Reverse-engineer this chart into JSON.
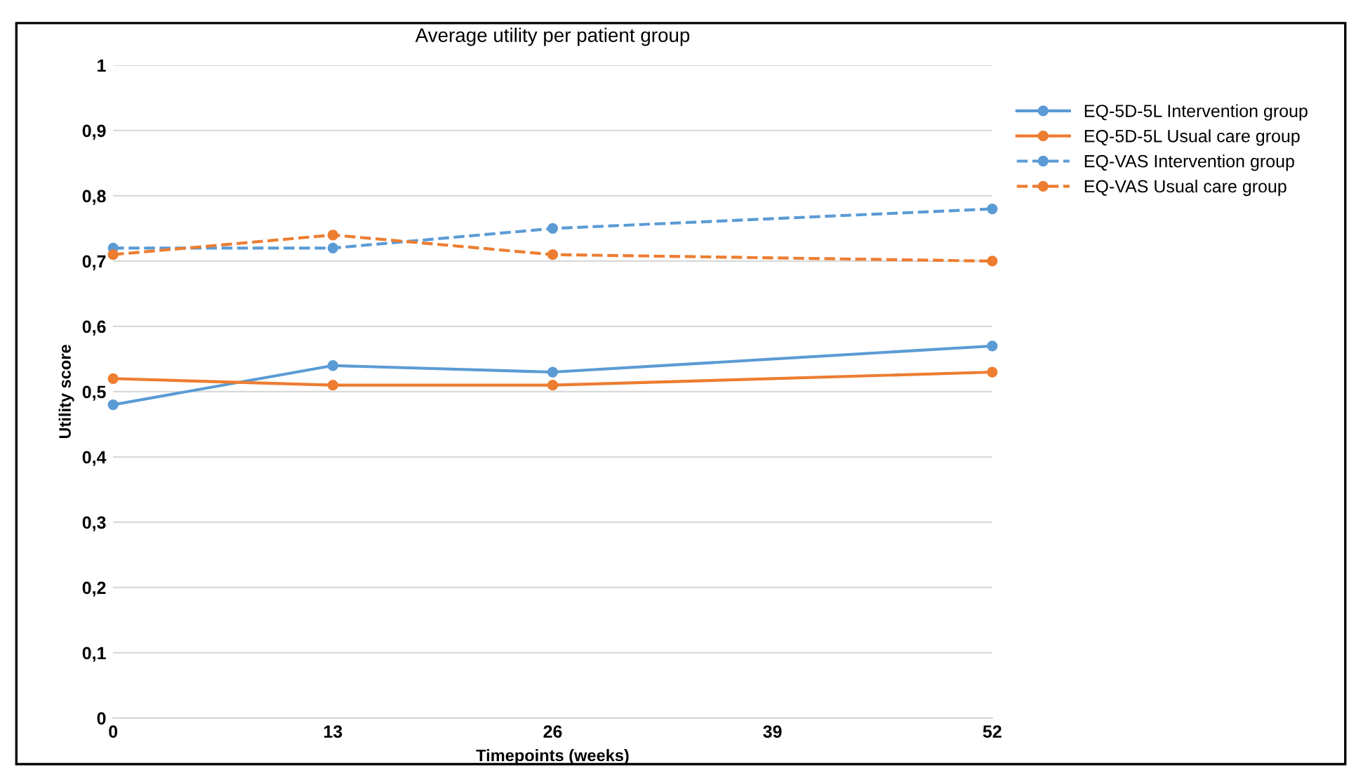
{
  "chart_data": {
    "type": "line",
    "title": "Average utility per patient group",
    "xlabel": "Timepoints (weeks)",
    "ylabel": "Utility score",
    "xlim": [
      0,
      52
    ],
    "xticks": [
      0,
      13,
      26,
      39,
      52
    ],
    "ylim": [
      0,
      1
    ],
    "yticks": [
      0,
      {
        "value": 0.1,
        "label": "0,1"
      },
      {
        "value": 0.2,
        "label": "0,2"
      },
      {
        "value": 0.3,
        "label": "0,3"
      },
      {
        "value": 0.4,
        "label": "0,4"
      },
      {
        "value": 0.5,
        "label": "0,5"
      },
      {
        "value": 0.6,
        "label": "0,6"
      },
      {
        "value": 0.7,
        "label": "0,7"
      },
      {
        "value": 0.8,
        "label": "0,8"
      },
      {
        "value": 0.9,
        "label": "0,9"
      },
      1
    ],
    "grid": "y",
    "legend": "right",
    "marker": "circle",
    "series": [
      {
        "name": "EQ-5D-5L Intervention group",
        "color": "#5b9bd5",
        "x": [
          0,
          13,
          26,
          52
        ],
        "values": [
          0.48,
          0.54,
          0.53,
          0.57
        ],
        "line_style": "solid"
      },
      {
        "name": "EQ-5D-5L Usual care group",
        "color": "#ed7d31",
        "x": [
          0,
          13,
          26,
          52
        ],
        "values": [
          0.52,
          0.51,
          0.51,
          0.53
        ],
        "line_style": "solid"
      },
      {
        "name": "EQ-VAS Intervention group",
        "color": "#5b9bd5",
        "x": [
          0,
          13,
          26,
          52
        ],
        "values": [
          0.72,
          0.72,
          0.75,
          0.78
        ],
        "line_style": "dashed"
      },
      {
        "name": "EQ-VAS Usual care group",
        "color": "#ed7d31",
        "x": [
          0,
          13,
          26,
          52
        ],
        "values": [
          0.71,
          0.74,
          0.71,
          0.7
        ],
        "line_style": "dashed"
      }
    ]
  }
}
